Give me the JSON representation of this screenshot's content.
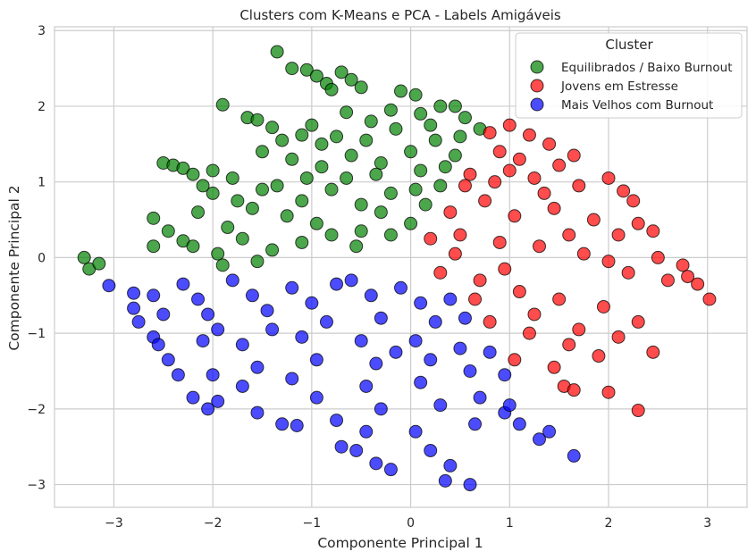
{
  "chart_data": {
    "type": "scatter",
    "title": "Clusters com K-Means e PCA - Labels Amigáveis",
    "xlabel": "Componente Principal 1",
    "ylabel": "Componente Principal 2",
    "xlim": [
      -3.6,
      3.4
    ],
    "ylim": [
      -3.3,
      3.05
    ],
    "xticks": [
      -3,
      -2,
      -1,
      0,
      1,
      2,
      3
    ],
    "xtick_labels": [
      "−3",
      "−2",
      "−1",
      "0",
      "1",
      "2",
      "3"
    ],
    "yticks": [
      -3,
      -2,
      -1,
      0,
      1,
      2,
      3
    ],
    "ytick_labels": [
      "−3",
      "−2",
      "−1",
      "0",
      "1",
      "2",
      "3"
    ],
    "grid": true,
    "legend": {
      "title": "Cluster",
      "placement": "top-right"
    },
    "series": [
      {
        "name": "Equilibrados / Baixo Burnout",
        "color": "#008000",
        "points": [
          [
            -1.35,
            2.72
          ],
          [
            -1.2,
            2.5
          ],
          [
            -1.05,
            2.48
          ],
          [
            -0.95,
            2.4
          ],
          [
            -0.85,
            2.3
          ],
          [
            -0.8,
            2.22
          ],
          [
            -0.7,
            2.45
          ],
          [
            -0.6,
            2.35
          ],
          [
            -0.5,
            2.25
          ],
          [
            -0.1,
            2.2
          ],
          [
            0.05,
            2.15
          ],
          [
            -1.9,
            2.02
          ],
          [
            -1.65,
            1.85
          ],
          [
            -1.4,
            1.72
          ],
          [
            -1.1,
            1.62
          ],
          [
            -0.9,
            1.5
          ],
          [
            -0.65,
            1.92
          ],
          [
            -0.4,
            1.8
          ],
          [
            -0.2,
            1.95
          ],
          [
            0.1,
            1.9
          ],
          [
            0.3,
            2.0
          ],
          [
            0.45,
            2.0
          ],
          [
            0.55,
            1.85
          ],
          [
            -2.5,
            1.25
          ],
          [
            -2.4,
            1.22
          ],
          [
            -2.3,
            1.18
          ],
          [
            -2.2,
            1.1
          ],
          [
            -2.0,
            1.15
          ],
          [
            -1.8,
            1.05
          ],
          [
            -1.5,
            1.4
          ],
          [
            -1.2,
            1.3
          ],
          [
            -0.9,
            1.2
          ],
          [
            -0.6,
            1.35
          ],
          [
            -0.3,
            1.25
          ],
          [
            0.0,
            1.4
          ],
          [
            0.25,
            1.55
          ],
          [
            0.5,
            1.6
          ],
          [
            0.7,
            1.7
          ],
          [
            -2.6,
            0.52
          ],
          [
            -2.45,
            0.35
          ],
          [
            -2.3,
            0.22
          ],
          [
            -2.15,
            0.6
          ],
          [
            -2.0,
            0.85
          ],
          [
            -1.85,
            0.4
          ],
          [
            -1.6,
            0.65
          ],
          [
            -1.35,
            0.95
          ],
          [
            -1.1,
            0.75
          ],
          [
            -0.8,
            0.9
          ],
          [
            -0.5,
            0.7
          ],
          [
            -0.2,
            0.85
          ],
          [
            0.05,
            0.9
          ],
          [
            0.3,
            0.95
          ],
          [
            -3.3,
            0.0
          ],
          [
            -3.25,
            -0.15
          ],
          [
            -3.15,
            -0.08
          ],
          [
            -2.2,
            0.15
          ],
          [
            -1.95,
            0.05
          ],
          [
            -1.7,
            0.25
          ],
          [
            -1.4,
            0.1
          ],
          [
            -1.1,
            0.2
          ],
          [
            -0.8,
            0.3
          ],
          [
            -0.5,
            0.35
          ],
          [
            -0.2,
            0.3
          ],
          [
            0.0,
            0.45
          ],
          [
            -1.55,
            1.82
          ],
          [
            -1.3,
            1.55
          ],
          [
            -1.0,
            1.75
          ],
          [
            -0.75,
            1.6
          ],
          [
            -0.45,
            1.55
          ],
          [
            -0.15,
            1.7
          ],
          [
            0.2,
            1.75
          ],
          [
            0.45,
            1.35
          ],
          [
            -2.1,
            0.95
          ],
          [
            -1.75,
            0.75
          ],
          [
            -1.25,
            0.55
          ],
          [
            -0.95,
            0.45
          ],
          [
            -0.65,
            1.05
          ],
          [
            -0.35,
            1.1
          ],
          [
            0.1,
            1.15
          ],
          [
            0.35,
            1.2
          ],
          [
            -1.5,
            0.9
          ],
          [
            -1.05,
            1.05
          ],
          [
            -0.55,
            0.15
          ],
          [
            -0.3,
            0.6
          ],
          [
            0.15,
            0.7
          ],
          [
            -2.6,
            0.15
          ],
          [
            -1.9,
            -0.1
          ],
          [
            -1.55,
            -0.05
          ]
        ]
      },
      {
        "name": "Jovens em Estresse",
        "color": "#ff0000",
        "points": [
          [
            0.8,
            1.65
          ],
          [
            1.0,
            1.75
          ],
          [
            1.2,
            1.62
          ],
          [
            1.4,
            1.5
          ],
          [
            1.65,
            1.35
          ],
          [
            0.9,
            1.4
          ],
          [
            1.1,
            1.3
          ],
          [
            1.5,
            1.22
          ],
          [
            0.6,
            1.1
          ],
          [
            0.85,
            1.0
          ],
          [
            1.25,
            1.05
          ],
          [
            1.7,
            0.95
          ],
          [
            2.0,
            1.05
          ],
          [
            2.15,
            0.88
          ],
          [
            2.25,
            0.75
          ],
          [
            2.3,
            0.45
          ],
          [
            2.45,
            0.35
          ],
          [
            0.4,
            0.6
          ],
          [
            0.75,
            0.75
          ],
          [
            1.05,
            0.55
          ],
          [
            1.45,
            0.65
          ],
          [
            1.85,
            0.5
          ],
          [
            2.1,
            0.3
          ],
          [
            2.5,
            0.0
          ],
          [
            2.75,
            -0.1
          ],
          [
            2.9,
            -0.35
          ],
          [
            3.02,
            -0.55
          ],
          [
            0.2,
            0.25
          ],
          [
            0.5,
            0.3
          ],
          [
            0.9,
            0.2
          ],
          [
            1.3,
            0.15
          ],
          [
            1.75,
            0.05
          ],
          [
            2.2,
            -0.2
          ],
          [
            2.6,
            -0.3
          ],
          [
            2.8,
            -0.25
          ],
          [
            0.3,
            -0.2
          ],
          [
            0.7,
            -0.3
          ],
          [
            1.1,
            -0.45
          ],
          [
            1.5,
            -0.55
          ],
          [
            1.95,
            -0.65
          ],
          [
            2.3,
            -0.85
          ],
          [
            2.1,
            -1.05
          ],
          [
            0.8,
            -0.85
          ],
          [
            1.2,
            -1.0
          ],
          [
            1.6,
            -1.15
          ],
          [
            1.9,
            -1.3
          ],
          [
            2.45,
            -1.25
          ],
          [
            1.05,
            -1.35
          ],
          [
            1.45,
            -1.45
          ],
          [
            1.55,
            -1.7
          ],
          [
            1.65,
            -1.75
          ],
          [
            2.0,
            -1.78
          ],
          [
            2.3,
            -2.02
          ],
          [
            0.55,
            0.95
          ],
          [
            1.0,
            1.15
          ],
          [
            1.35,
            0.85
          ],
          [
            1.6,
            0.3
          ],
          [
            2.0,
            -0.05
          ],
          [
            0.65,
            -0.55
          ],
          [
            1.25,
            -0.75
          ],
          [
            1.7,
            -0.95
          ],
          [
            0.95,
            -0.15
          ],
          [
            0.45,
            0.05
          ]
        ]
      },
      {
        "name": "Mais Velhos com Burnout",
        "color": "#0000ff",
        "points": [
          [
            -3.05,
            -0.37
          ],
          [
            -2.8,
            -0.47
          ],
          [
            -2.8,
            -0.67
          ],
          [
            -2.6,
            -0.5
          ],
          [
            -2.5,
            -0.75
          ],
          [
            -2.6,
            -1.05
          ],
          [
            -2.55,
            -1.15
          ],
          [
            -2.45,
            -1.35
          ],
          [
            -2.35,
            -1.55
          ],
          [
            -2.3,
            -0.35
          ],
          [
            -2.15,
            -0.55
          ],
          [
            -2.05,
            -0.75
          ],
          [
            -1.95,
            -0.95
          ],
          [
            -2.1,
            -1.1
          ],
          [
            -2.0,
            -1.55
          ],
          [
            -1.95,
            -1.9
          ],
          [
            -2.2,
            -1.85
          ],
          [
            -2.05,
            -2.0
          ],
          [
            -1.8,
            -0.3
          ],
          [
            -1.6,
            -0.5
          ],
          [
            -1.45,
            -0.7
          ],
          [
            -1.7,
            -1.15
          ],
          [
            -1.55,
            -1.45
          ],
          [
            -1.7,
            -1.7
          ],
          [
            -1.55,
            -2.05
          ],
          [
            -1.3,
            -2.2
          ],
          [
            -1.15,
            -2.22
          ],
          [
            -1.2,
            -0.4
          ],
          [
            -1.0,
            -0.6
          ],
          [
            -0.85,
            -0.85
          ],
          [
            -1.1,
            -1.05
          ],
          [
            -0.95,
            -1.35
          ],
          [
            -1.2,
            -1.6
          ],
          [
            -0.95,
            -1.85
          ],
          [
            -0.75,
            -2.15
          ],
          [
            -0.7,
            -2.5
          ],
          [
            -0.6,
            -0.3
          ],
          [
            -0.4,
            -0.5
          ],
          [
            -0.3,
            -0.8
          ],
          [
            -0.5,
            -1.1
          ],
          [
            -0.35,
            -1.4
          ],
          [
            -0.45,
            -1.7
          ],
          [
            -0.3,
            -2.0
          ],
          [
            -0.45,
            -2.3
          ],
          [
            -0.55,
            -2.55
          ],
          [
            -0.35,
            -2.72
          ],
          [
            -0.2,
            -2.8
          ],
          [
            -0.1,
            -0.4
          ],
          [
            0.1,
            -0.6
          ],
          [
            0.25,
            -0.85
          ],
          [
            0.05,
            -1.1
          ],
          [
            0.2,
            -1.35
          ],
          [
            0.1,
            -1.65
          ],
          [
            0.3,
            -1.95
          ],
          [
            0.05,
            -2.3
          ],
          [
            0.2,
            -2.55
          ],
          [
            0.4,
            -2.75
          ],
          [
            0.35,
            -2.95
          ],
          [
            0.6,
            -3.0
          ],
          [
            0.4,
            -0.55
          ],
          [
            0.55,
            -0.8
          ],
          [
            0.5,
            -1.2
          ],
          [
            0.6,
            -1.5
          ],
          [
            0.7,
            -1.85
          ],
          [
            0.95,
            -2.05
          ],
          [
            1.1,
            -2.2
          ],
          [
            1.3,
            -2.4
          ],
          [
            1.4,
            -2.3
          ],
          [
            1.65,
            -2.62
          ],
          [
            0.8,
            -1.25
          ],
          [
            0.95,
            -1.55
          ],
          [
            1.0,
            -1.95
          ],
          [
            -1.4,
            -0.95
          ],
          [
            -0.75,
            -0.35
          ],
          [
            -0.15,
            -1.25
          ],
          [
            0.65,
            -2.2
          ],
          [
            -2.75,
            -0.85
          ]
        ]
      }
    ]
  }
}
